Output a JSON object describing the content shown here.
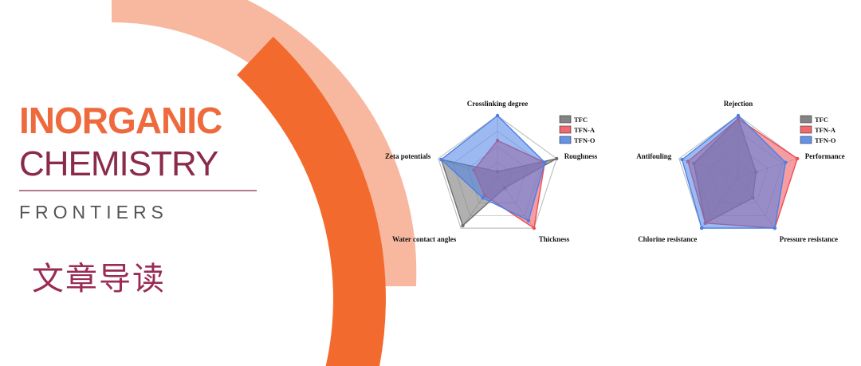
{
  "banner": {
    "title_line1": "INORGANIC",
    "title_line2": "CHEMISTRY",
    "title_line3": "FRONTIERS",
    "subtitle": "文章导读"
  },
  "colors": {
    "orange": "#ee6a3d",
    "ring_light": "#f8b8a0",
    "ring_dark": "#f36a2e",
    "maroon": "#8a2b4b",
    "TFC": "#6f6f6f",
    "TFN-A": "#ee4d55",
    "TFN-O": "#4a80e6"
  },
  "chart_data": [
    {
      "type": "radar",
      "axes": [
        "Crosslinking degree",
        "Roughness",
        "Thickness",
        "Water contact angles",
        "Zeta potentials"
      ],
      "range": [
        0,
        1
      ],
      "legend_position": "top-right",
      "series": [
        {
          "name": "TFC",
          "values": [
            0.1,
            1.0,
            0.2,
            0.95,
            0.95
          ]
        },
        {
          "name": "TFN-A",
          "values": [
            0.6,
            0.8,
            1.0,
            0.35,
            0.4
          ]
        },
        {
          "name": "TFN-O",
          "values": [
            1.0,
            0.8,
            0.85,
            0.4,
            0.95
          ]
        }
      ]
    },
    {
      "type": "radar",
      "axes": [
        "Rejection",
        "Performance",
        "Pressure resistance",
        "Chlorine resistance",
        "Antifouling"
      ],
      "range": [
        0,
        1
      ],
      "legend_position": "top-right",
      "series": [
        {
          "name": "TFC",
          "values": [
            0.95,
            0.3,
            0.4,
            0.9,
            0.75
          ]
        },
        {
          "name": "TFN-A",
          "values": [
            0.95,
            1.0,
            1.0,
            0.9,
            0.85
          ]
        },
        {
          "name": "TFN-O",
          "values": [
            1.0,
            0.8,
            1.0,
            1.0,
            0.95
          ]
        }
      ]
    }
  ]
}
